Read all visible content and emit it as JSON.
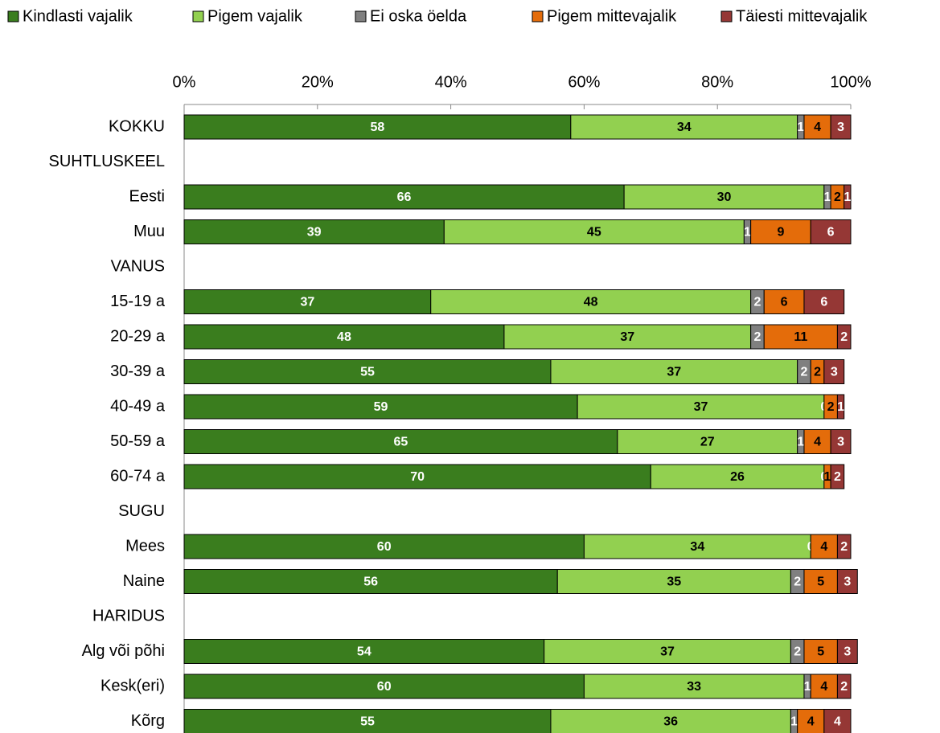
{
  "chart_data": {
    "type": "stacked_barh",
    "categories": [
      "KOKKU",
      "SUHTLUSKEEL",
      "Eesti",
      "Muu",
      "VANUS",
      "15-19 a",
      "20-29 a",
      "30-39 a",
      "40-49 a",
      "50-59 a",
      "60-74 a",
      "SUGU",
      "Mees",
      "Naine",
      "HARIDUS",
      "Alg või põhi",
      "Kesk(eri)",
      "Kõrg"
    ],
    "series": [
      {
        "name": "Kindlasti vajalik",
        "color": "#3a7d1e",
        "values": [
          58,
          null,
          66,
          39,
          null,
          37,
          48,
          55,
          59,
          65,
          70,
          null,
          60,
          56,
          null,
          54,
          60,
          55
        ]
      },
      {
        "name": "Pigem vajalik",
        "color": "#92d050",
        "values": [
          34,
          null,
          30,
          45,
          null,
          48,
          37,
          37,
          37,
          27,
          26,
          null,
          34,
          35,
          null,
          37,
          33,
          36
        ]
      },
      {
        "name": "Ei oska öelda",
        "color": "#808080",
        "values": [
          1,
          null,
          1,
          1,
          null,
          2,
          2,
          2,
          0,
          1,
          0,
          null,
          0,
          2,
          null,
          2,
          1,
          1
        ]
      },
      {
        "name": "Pigem mittevajalik",
        "color": "#e46c0a",
        "values": [
          4,
          null,
          2,
          9,
          null,
          6,
          11,
          2,
          2,
          4,
          1,
          null,
          4,
          5,
          null,
          5,
          4,
          4
        ]
      },
      {
        "name": "Täiesti mittevajalik",
        "color": "#953735",
        "values": [
          3,
          null,
          1,
          6,
          null,
          6,
          2,
          3,
          1,
          3,
          2,
          null,
          2,
          3,
          null,
          3,
          2,
          4
        ]
      }
    ],
    "xlim": [
      0,
      100
    ],
    "xticks": [
      {
        "value": 0,
        "label": "0%"
      },
      {
        "value": 20,
        "label": "20%"
      },
      {
        "value": 40,
        "label": "40%"
      },
      {
        "value": 60,
        "label": "60%"
      },
      {
        "value": 80,
        "label": "80%"
      },
      {
        "value": 100,
        "label": "100%"
      }
    ],
    "legend": "top"
  }
}
